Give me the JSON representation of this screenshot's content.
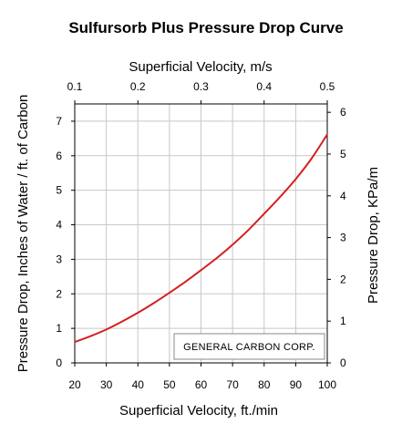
{
  "chart_data": {
    "type": "line",
    "title": "Sulfursorb Plus Pressure Drop Curve",
    "xlabel": "Superficial Velocity, ft./min",
    "ylabel": "Pressure Drop, Inches of Water / ft. of Carbon",
    "x2label": "Superficial Velocity, m/s",
    "y2label": "Pressure Drop, KPa/m",
    "xlim": [
      20,
      100
    ],
    "ylim": [
      0,
      7.5
    ],
    "x2lim": [
      0.1,
      0.5
    ],
    "y2lim": [
      0,
      6.2
    ],
    "x_ticks": [
      "20",
      "30",
      "40",
      "50",
      "60",
      "70",
      "80",
      "90",
      "100"
    ],
    "y_ticks": [
      "0",
      "1",
      "2",
      "3",
      "4",
      "5",
      "6",
      "7"
    ],
    "x2_ticks": [
      "0.1",
      "0.2",
      "0.3",
      "0.4",
      "0.5"
    ],
    "y2_ticks": [
      "0",
      "1",
      "2",
      "3",
      "4",
      "5",
      "6"
    ],
    "grid": true,
    "series_color": "#d42020",
    "series": [
      {
        "x": [
          20,
          25,
          30,
          35,
          40,
          45,
          50,
          55,
          60,
          65,
          70,
          75,
          80,
          85,
          90,
          95,
          100
        ],
        "values": [
          0.5,
          0.64,
          0.8,
          0.99,
          1.2,
          1.43,
          1.68,
          1.94,
          2.22,
          2.51,
          2.83,
          3.18,
          3.57,
          3.97,
          4.4,
          4.89,
          5.47
        ]
      }
    ],
    "annotation": "GENERAL CARBON CORP."
  }
}
